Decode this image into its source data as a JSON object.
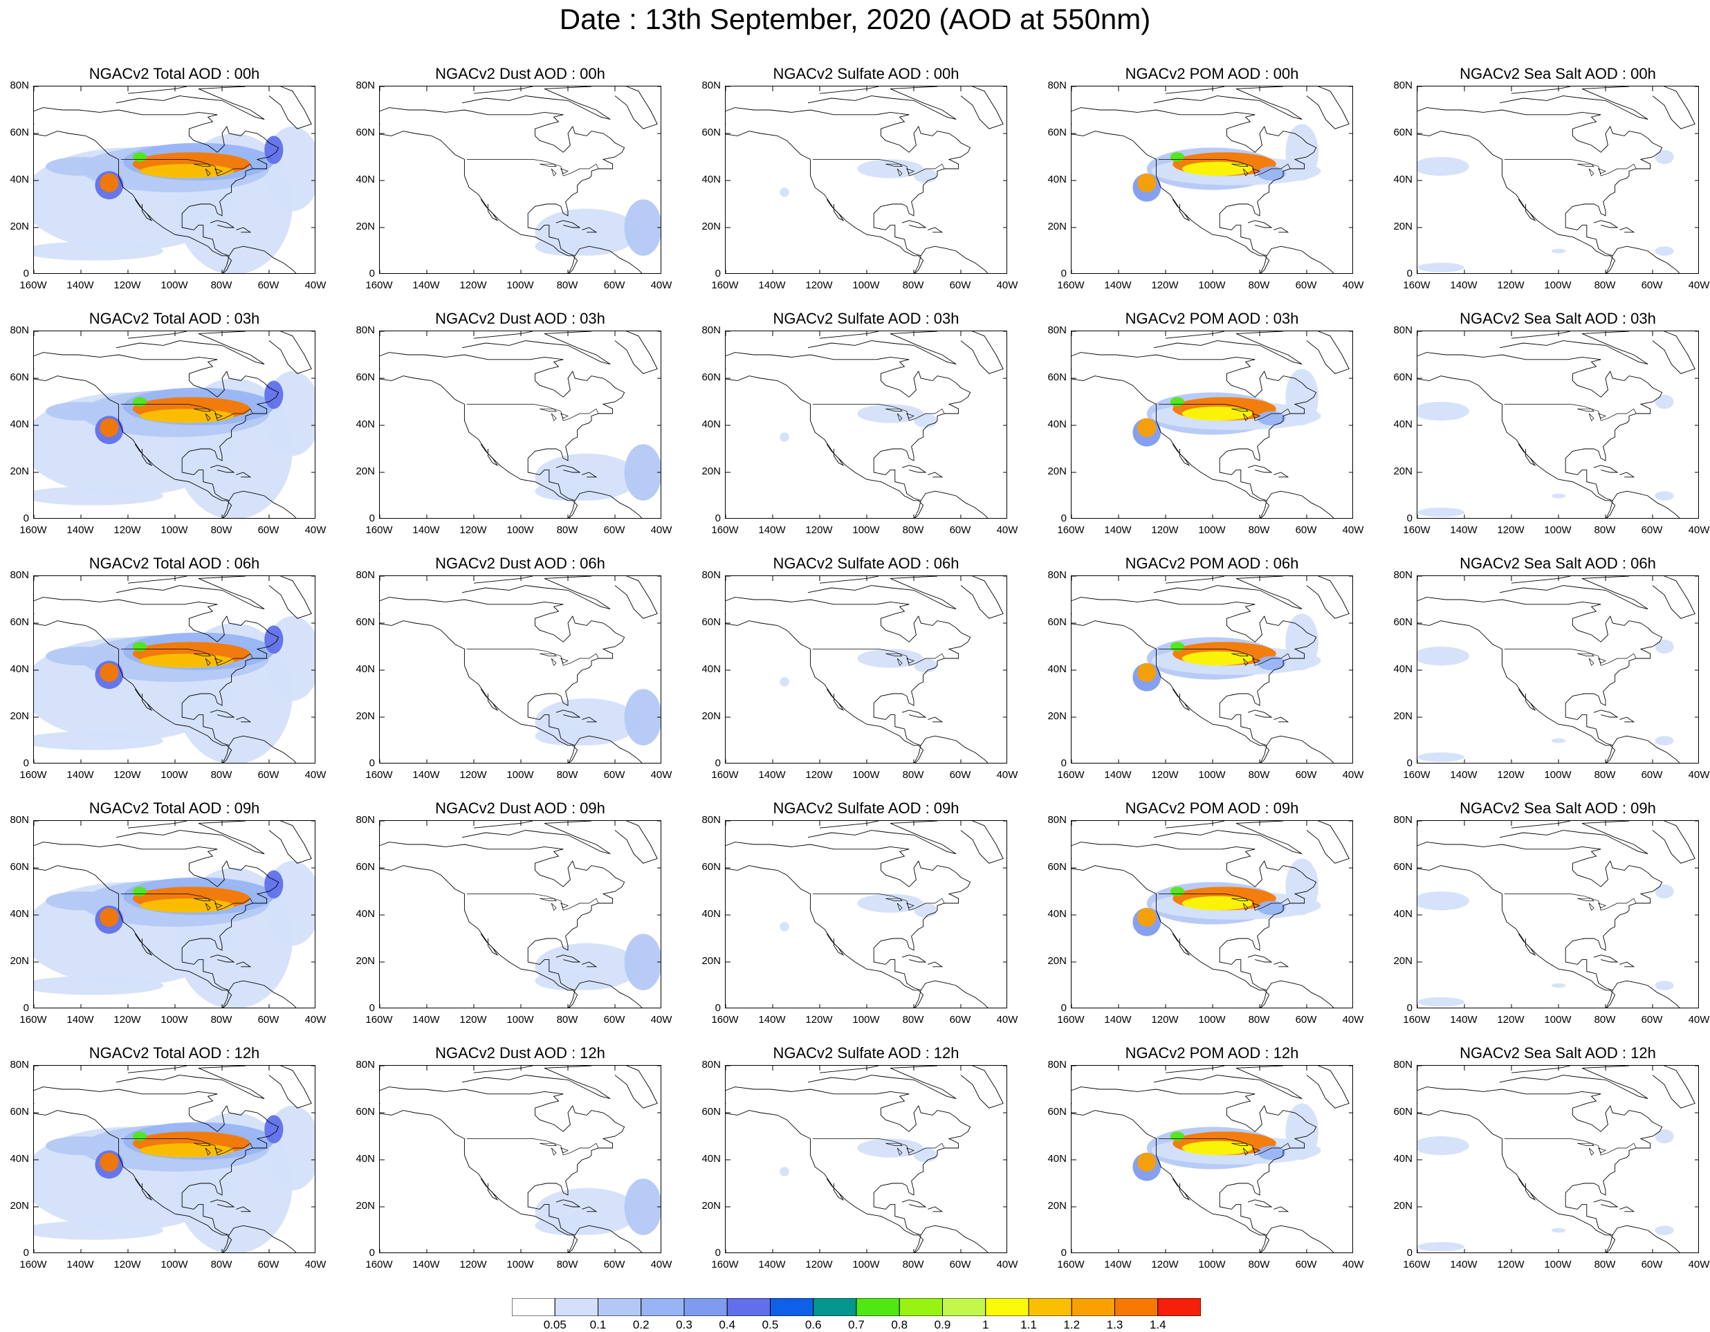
{
  "title": "Date : 13th September, 2020 (AOD at 550nm)",
  "lat_labels": [
    "80N",
    "60N",
    "40N",
    "20N",
    "0"
  ],
  "lon_labels": [
    "160W",
    "140W",
    "120W",
    "100W",
    "80W",
    "60W",
    "40W"
  ],
  "map_extent": {
    "lon": [
      -160,
      -40
    ],
    "lat": [
      0,
      80
    ]
  },
  "layout": "5 rows x 5 columns",
  "columns": [
    "total",
    "dust",
    "sulfate",
    "pom",
    "seasalt"
  ],
  "panels": [
    [
      "NGACv2 Total AOD : 00h",
      "NGACv2 Dust AOD : 00h",
      "NGACv2 Sulfate AOD : 00h",
      "NGACv2 POM AOD : 00h",
      "NGACv2 Sea Salt AOD : 00h"
    ],
    [
      "NGACv2 Total AOD : 03h",
      "NGACv2 Dust AOD : 03h",
      "NGACv2 Sulfate AOD : 03h",
      "NGACv2 POM AOD : 03h",
      "NGACv2 Sea Salt AOD : 03h"
    ],
    [
      "NGACv2 Total AOD : 06h",
      "NGACv2 Dust AOD : 06h",
      "NGACv2 Sulfate AOD : 06h",
      "NGACv2 POM AOD : 06h",
      "NGACv2 Sea Salt AOD : 06h"
    ],
    [
      "NGACv2 Total AOD : 09h",
      "NGACv2 Dust AOD : 09h",
      "NGACv2 Sulfate AOD : 09h",
      "NGACv2 POM AOD : 09h",
      "NGACv2 Sea Salt  AOD : 09h"
    ],
    [
      "NGACv2 Total AOD  : 12h",
      "NGACv2 Dust AOD : 12h",
      "NGACv2 Sulfate AOD : 12h",
      "NGACv2 POM  AOD : 12h",
      "NGACv2 Sea Salt  AOD : 12h"
    ]
  ],
  "colorbar": {
    "ticks": [
      "0.05",
      "0.1",
      "0.2",
      "0.3",
      "0.4",
      "0.5",
      "0.6",
      "0.7",
      "0.8",
      "0.9",
      "1",
      "1.1",
      "1.2",
      "1.3",
      "1.4"
    ],
    "colors": [
      "#ffffff",
      "#d4e0fa",
      "#b4c8f6",
      "#98b4f4",
      "#7f9bf0",
      "#6070ea",
      "#0f5fe8",
      "#03968f",
      "#50e813",
      "#98f212",
      "#c2f84c",
      "#fafa08",
      "#fac000",
      "#faa000",
      "#f57800",
      "#f51f0a"
    ]
  }
}
